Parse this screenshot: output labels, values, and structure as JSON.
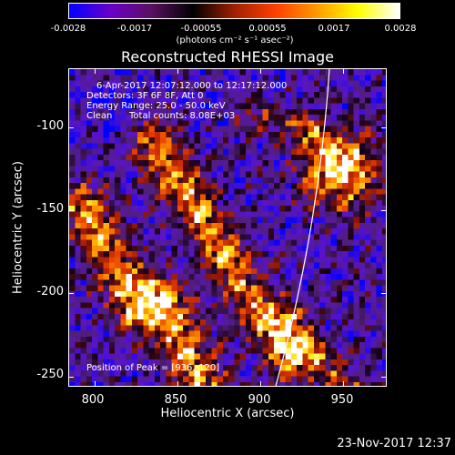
{
  "colorbar": {
    "tick_labels": [
      "-0.0028",
      "-0.0017",
      "-0.00055",
      "0.00055",
      "0.0017",
      "0.0028"
    ],
    "units": "(photons cm⁻² s⁻¹ asec⁻²)",
    "colors": [
      "#0000ff",
      "#6a00c8",
      "#5a1060",
      "#000000",
      "#a02000",
      "#ff4000",
      "#ff9a00",
      "#ffff00",
      "#ffffff"
    ]
  },
  "title": "Reconstructed RHESSI Image",
  "info": {
    "line1": "6-Apr-2017 12:07:12.000 to 12:17:12.000",
    "line2": "Detectors: 3F 6F 8F, Att 0",
    "line3": "Energy Range: 25.0 - 50.0 keV",
    "line4_method": "Clean",
    "line4_counts": "Total counts: 8.08E+03",
    "peak": "Position of Peak = [936,-120]"
  },
  "axes": {
    "xlabel": "Heliocentric X (arcsec)",
    "ylabel": "Heliocentric Y (arcsec)",
    "xlim": [
      784,
      976
    ],
    "ylim": [
      -256,
      -64
    ],
    "xticks": [
      "800",
      "850",
      "900",
      "950"
    ],
    "xtick_values": [
      800,
      850,
      900,
      950
    ],
    "yticks": [
      "-100",
      "-150",
      "-200",
      "-250"
    ],
    "ytick_values": [
      -100,
      -150,
      -200,
      -250
    ]
  },
  "limb_color": "#ffffff",
  "footer": {
    "date": "23-Nov-2017 12:37"
  }
}
